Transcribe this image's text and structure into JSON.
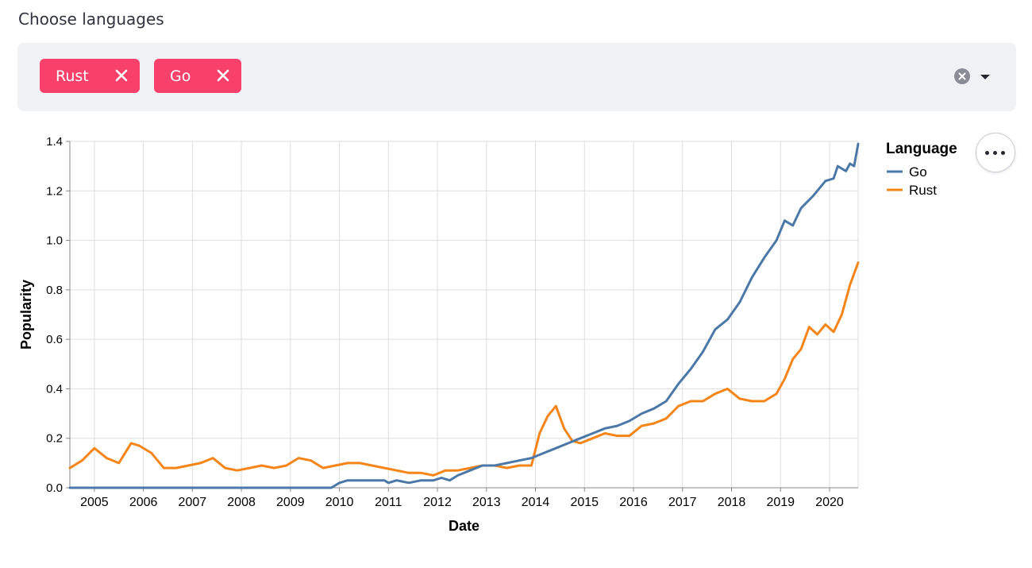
{
  "field": {
    "label": "Choose languages"
  },
  "multiselect": {
    "selected": [
      "Rust",
      "Go"
    ],
    "clear_icon": "clear-circle-icon",
    "dropdown_icon": "chevron-down-icon"
  },
  "colors": {
    "tag_bg": "#f7406a",
    "go": "#4c78a8",
    "rust": "#f58518",
    "panel_bg": "#f0f2f6"
  },
  "menu": {
    "icon": "more-horizontal-icon"
  },
  "chart_data": {
    "type": "line",
    "xlabel": "Date",
    "ylabel": "Popularity",
    "xlim": [
      "2004-07",
      "2020-08"
    ],
    "ylim": [
      0,
      1.4
    ],
    "grid": true,
    "x_ticks": [
      "2005",
      "2006",
      "2007",
      "2008",
      "2009",
      "2010",
      "2011",
      "2012",
      "2013",
      "2014",
      "2015",
      "2016",
      "2017",
      "2018",
      "2019",
      "2020"
    ],
    "y_ticks": [
      "0.0",
      "0.2",
      "0.4",
      "0.6",
      "0.8",
      "1.0",
      "1.2",
      "1.4"
    ],
    "legend": {
      "title": "Language",
      "placement": "top-right",
      "entries": [
        "Go",
        "Rust"
      ]
    },
    "series": [
      {
        "name": "Go",
        "color": "#4c78a8",
        "points": [
          [
            "2004-07",
            0.0
          ],
          [
            "2009-11",
            0.0
          ],
          [
            "2010-01",
            0.02
          ],
          [
            "2010-03",
            0.03
          ],
          [
            "2010-06",
            0.03
          ],
          [
            "2010-09",
            0.03
          ],
          [
            "2010-12",
            0.03
          ],
          [
            "2011-01",
            0.02
          ],
          [
            "2011-03",
            0.03
          ],
          [
            "2011-06",
            0.02
          ],
          [
            "2011-09",
            0.03
          ],
          [
            "2011-12",
            0.03
          ],
          [
            "2012-02",
            0.04
          ],
          [
            "2012-04",
            0.03
          ],
          [
            "2012-06",
            0.05
          ],
          [
            "2012-09",
            0.07
          ],
          [
            "2012-12",
            0.09
          ],
          [
            "2013-03",
            0.09
          ],
          [
            "2013-06",
            0.1
          ],
          [
            "2013-09",
            0.11
          ],
          [
            "2013-12",
            0.12
          ],
          [
            "2014-03",
            0.14
          ],
          [
            "2014-06",
            0.16
          ],
          [
            "2014-09",
            0.18
          ],
          [
            "2014-12",
            0.2
          ],
          [
            "2015-03",
            0.22
          ],
          [
            "2015-06",
            0.24
          ],
          [
            "2015-09",
            0.25
          ],
          [
            "2015-12",
            0.27
          ],
          [
            "2016-03",
            0.3
          ],
          [
            "2016-06",
            0.32
          ],
          [
            "2016-09",
            0.35
          ],
          [
            "2016-12",
            0.42
          ],
          [
            "2017-03",
            0.48
          ],
          [
            "2017-06",
            0.55
          ],
          [
            "2017-09",
            0.64
          ],
          [
            "2017-12",
            0.68
          ],
          [
            "2018-03",
            0.75
          ],
          [
            "2018-06",
            0.85
          ],
          [
            "2018-09",
            0.93
          ],
          [
            "2018-12",
            1.0
          ],
          [
            "2019-02",
            1.08
          ],
          [
            "2019-04",
            1.06
          ],
          [
            "2019-06",
            1.13
          ],
          [
            "2019-09",
            1.18
          ],
          [
            "2019-12",
            1.24
          ],
          [
            "2020-02",
            1.25
          ],
          [
            "2020-03",
            1.3
          ],
          [
            "2020-05",
            1.28
          ],
          [
            "2020-06",
            1.31
          ],
          [
            "2020-07",
            1.3
          ],
          [
            "2020-08",
            1.39
          ]
        ]
      },
      {
        "name": "Rust",
        "color": "#f58518",
        "points": [
          [
            "2004-07",
            0.08
          ],
          [
            "2004-10",
            0.11
          ],
          [
            "2005-01",
            0.16
          ],
          [
            "2005-04",
            0.12
          ],
          [
            "2005-07",
            0.1
          ],
          [
            "2005-10",
            0.18
          ],
          [
            "2005-12",
            0.17
          ],
          [
            "2006-03",
            0.14
          ],
          [
            "2006-06",
            0.08
          ],
          [
            "2006-09",
            0.08
          ],
          [
            "2006-12",
            0.09
          ],
          [
            "2007-03",
            0.1
          ],
          [
            "2007-06",
            0.12
          ],
          [
            "2007-09",
            0.08
          ],
          [
            "2007-12",
            0.07
          ],
          [
            "2008-03",
            0.08
          ],
          [
            "2008-06",
            0.09
          ],
          [
            "2008-09",
            0.08
          ],
          [
            "2008-12",
            0.09
          ],
          [
            "2009-03",
            0.12
          ],
          [
            "2009-06",
            0.11
          ],
          [
            "2009-09",
            0.08
          ],
          [
            "2009-12",
            0.09
          ],
          [
            "2010-03",
            0.1
          ],
          [
            "2010-06",
            0.1
          ],
          [
            "2010-09",
            0.09
          ],
          [
            "2010-12",
            0.08
          ],
          [
            "2011-03",
            0.07
          ],
          [
            "2011-06",
            0.06
          ],
          [
            "2011-09",
            0.06
          ],
          [
            "2011-12",
            0.05
          ],
          [
            "2012-03",
            0.07
          ],
          [
            "2012-06",
            0.07
          ],
          [
            "2012-09",
            0.08
          ],
          [
            "2012-12",
            0.09
          ],
          [
            "2013-03",
            0.09
          ],
          [
            "2013-06",
            0.08
          ],
          [
            "2013-09",
            0.09
          ],
          [
            "2013-12",
            0.09
          ],
          [
            "2014-02",
            0.22
          ],
          [
            "2014-04",
            0.29
          ],
          [
            "2014-06",
            0.33
          ],
          [
            "2014-08",
            0.24
          ],
          [
            "2014-10",
            0.19
          ],
          [
            "2014-12",
            0.18
          ],
          [
            "2015-03",
            0.2
          ],
          [
            "2015-06",
            0.22
          ],
          [
            "2015-09",
            0.21
          ],
          [
            "2015-12",
            0.21
          ],
          [
            "2016-03",
            0.25
          ],
          [
            "2016-06",
            0.26
          ],
          [
            "2016-09",
            0.28
          ],
          [
            "2016-12",
            0.33
          ],
          [
            "2017-03",
            0.35
          ],
          [
            "2017-06",
            0.35
          ],
          [
            "2017-09",
            0.38
          ],
          [
            "2017-12",
            0.4
          ],
          [
            "2018-03",
            0.36
          ],
          [
            "2018-06",
            0.35
          ],
          [
            "2018-09",
            0.35
          ],
          [
            "2018-12",
            0.38
          ],
          [
            "2019-02",
            0.44
          ],
          [
            "2019-04",
            0.52
          ],
          [
            "2019-06",
            0.56
          ],
          [
            "2019-08",
            0.65
          ],
          [
            "2019-10",
            0.62
          ],
          [
            "2019-12",
            0.66
          ],
          [
            "2020-02",
            0.63
          ],
          [
            "2020-04",
            0.7
          ],
          [
            "2020-06",
            0.82
          ],
          [
            "2020-08",
            0.91
          ]
        ]
      }
    ]
  }
}
